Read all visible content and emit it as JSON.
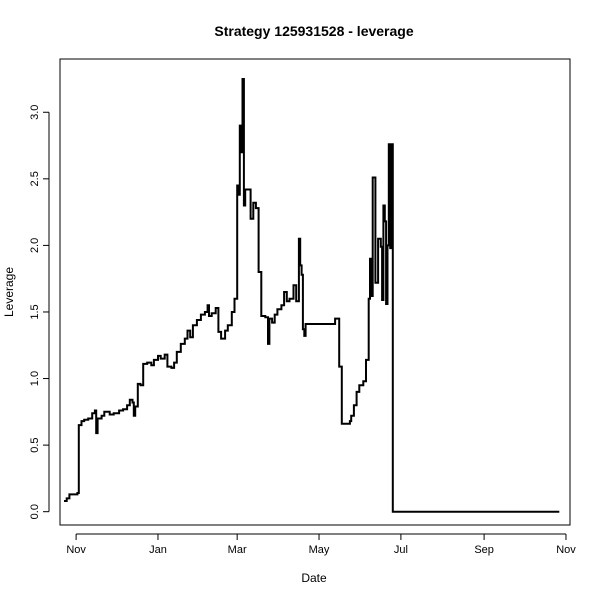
{
  "chart_data": {
    "type": "line",
    "title": "Strategy 125931528 - leverage",
    "xlabel": "Date",
    "ylabel": "Leverage",
    "x_ticks": [
      "Nov",
      "Jan",
      "Mar",
      "May",
      "Jul",
      "Sep",
      "Nov"
    ],
    "y_ticks": [
      "0.0",
      "0.5",
      "1.0",
      "1.5",
      "2.0",
      "2.5",
      "3.0"
    ],
    "ylim": [
      -0.1,
      3.4
    ],
    "xlim": [
      "2016-10-20",
      "2017-11-04"
    ],
    "step": true,
    "series": [
      {
        "color": "#000000",
        "points": [
          [
            "2016-10-23",
            0.08
          ],
          [
            "2016-10-25",
            0.1
          ],
          [
            "2016-10-27",
            0.13
          ],
          [
            "2016-11-02",
            0.14
          ],
          [
            "2016-11-03",
            0.65
          ],
          [
            "2016-11-05",
            0.68
          ],
          [
            "2016-11-07",
            0.69
          ],
          [
            "2016-11-10",
            0.7
          ],
          [
            "2016-11-13",
            0.74
          ],
          [
            "2016-11-15",
            0.76
          ],
          [
            "2016-11-16",
            0.59
          ],
          [
            "2016-11-17",
            0.7
          ],
          [
            "2016-11-20",
            0.72
          ],
          [
            "2016-11-22",
            0.75
          ],
          [
            "2016-11-26",
            0.73
          ],
          [
            "2016-11-29",
            0.74
          ],
          [
            "2016-12-03",
            0.76
          ],
          [
            "2016-12-06",
            0.77
          ],
          [
            "2016-12-09",
            0.8
          ],
          [
            "2016-12-11",
            0.84
          ],
          [
            "2016-12-13",
            0.82
          ],
          [
            "2016-12-14",
            0.72
          ],
          [
            "2016-12-15",
            0.79
          ],
          [
            "2016-12-17",
            0.96
          ],
          [
            "2016-12-19",
            0.95
          ],
          [
            "2016-12-21",
            1.11
          ],
          [
            "2016-12-24",
            1.12
          ],
          [
            "2016-12-27",
            1.1
          ],
          [
            "2016-12-29",
            1.14
          ],
          [
            "2017-01-01",
            1.17
          ],
          [
            "2017-01-03",
            1.15
          ],
          [
            "2017-01-06",
            1.18
          ],
          [
            "2017-01-08",
            1.09
          ],
          [
            "2017-01-11",
            1.08
          ],
          [
            "2017-01-13",
            1.12
          ],
          [
            "2017-01-15",
            1.2
          ],
          [
            "2017-01-18",
            1.26
          ],
          [
            "2017-01-21",
            1.3
          ],
          [
            "2017-01-23",
            1.36
          ],
          [
            "2017-01-25",
            1.31
          ],
          [
            "2017-01-27",
            1.4
          ],
          [
            "2017-01-30",
            1.44
          ],
          [
            "2017-02-02",
            1.48
          ],
          [
            "2017-02-05",
            1.5
          ],
          [
            "2017-02-07",
            1.55
          ],
          [
            "2017-02-08",
            1.47
          ],
          [
            "2017-02-10",
            1.49
          ],
          [
            "2017-02-13",
            1.53
          ],
          [
            "2017-02-15",
            1.35
          ],
          [
            "2017-02-17",
            1.3
          ],
          [
            "2017-02-20",
            1.36
          ],
          [
            "2017-02-22",
            1.4
          ],
          [
            "2017-02-25",
            1.5
          ],
          [
            "2017-02-27",
            1.6
          ],
          [
            "2017-03-01",
            2.45
          ],
          [
            "2017-03-02",
            2.38
          ],
          [
            "2017-03-03",
            2.9
          ],
          [
            "2017-03-04",
            2.7
          ],
          [
            "2017-03-05",
            3.25
          ],
          [
            "2017-03-06",
            2.3
          ],
          [
            "2017-03-07",
            2.42
          ],
          [
            "2017-03-11",
            2.2
          ],
          [
            "2017-03-13",
            2.32
          ],
          [
            "2017-03-15",
            2.28
          ],
          [
            "2017-03-17",
            1.8
          ],
          [
            "2017-03-19",
            1.47
          ],
          [
            "2017-03-22",
            1.46
          ],
          [
            "2017-03-24",
            1.26
          ],
          [
            "2017-03-25",
            1.45
          ],
          [
            "2017-03-27",
            1.42
          ],
          [
            "2017-03-29",
            1.48
          ],
          [
            "2017-03-31",
            1.52
          ],
          [
            "2017-04-03",
            1.55
          ],
          [
            "2017-04-05",
            1.65
          ],
          [
            "2017-04-07",
            1.58
          ],
          [
            "2017-04-09",
            1.6
          ],
          [
            "2017-04-12",
            1.7
          ],
          [
            "2017-04-14",
            1.58
          ],
          [
            "2017-04-16",
            2.05
          ],
          [
            "2017-04-17",
            1.85
          ],
          [
            "2017-04-18",
            1.78
          ],
          [
            "2017-04-19",
            1.37
          ],
          [
            "2017-04-20",
            1.32
          ],
          [
            "2017-04-21",
            1.41
          ],
          [
            "2017-05-13",
            1.45
          ],
          [
            "2017-05-16",
            1.09
          ],
          [
            "2017-05-18",
            0.66
          ],
          [
            "2017-05-24",
            0.68
          ],
          [
            "2017-05-25",
            0.72
          ],
          [
            "2017-05-27",
            0.8
          ],
          [
            "2017-05-29",
            0.9
          ],
          [
            "2017-05-31",
            0.95
          ],
          [
            "2017-06-03",
            0.98
          ],
          [
            "2017-06-05",
            1.14
          ],
          [
            "2017-06-07",
            1.6
          ],
          [
            "2017-06-08",
            1.9
          ],
          [
            "2017-06-09",
            1.62
          ],
          [
            "2017-06-10",
            2.51
          ],
          [
            "2017-06-12",
            1.72
          ],
          [
            "2017-06-14",
            2.05
          ],
          [
            "2017-06-16",
            1.99
          ],
          [
            "2017-06-17",
            1.59
          ],
          [
            "2017-06-18",
            2.3
          ],
          [
            "2017-06-19",
            2.18
          ],
          [
            "2017-06-20",
            1.56
          ],
          [
            "2017-06-21",
            2.0
          ],
          [
            "2017-06-22",
            2.76
          ],
          [
            "2017-06-23",
            1.98
          ],
          [
            "2017-06-24",
            2.76
          ],
          [
            "2017-06-25",
            0.0
          ],
          [
            "2017-10-27",
            0.0
          ]
        ]
      }
    ]
  }
}
